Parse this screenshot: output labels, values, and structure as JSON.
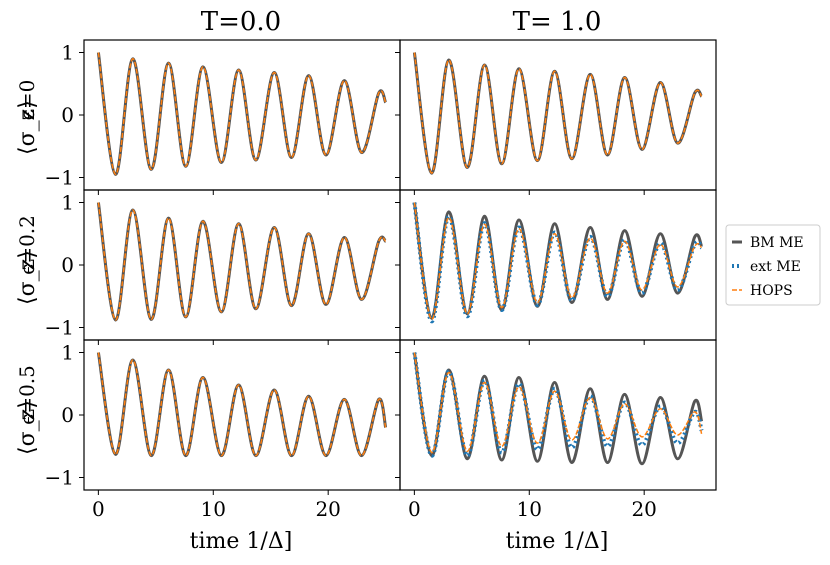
{
  "figure": {
    "col_titles": [
      "T=0.0",
      "T= 1.0"
    ],
    "row_params": [
      "ϵ=0",
      "ϵ=0.2",
      "ϵ=0.5"
    ],
    "ylabel": "⟨σ_z⟩",
    "xlabel": "time 1/Δ]",
    "legend_entries": [
      "BM ME",
      "ext ME",
      "HOPS"
    ],
    "colors": {
      "bm_me": "#555555",
      "ext_me": "#1f77b4",
      "hops": "#ff7f0e",
      "frame": "#000000"
    }
  },
  "chart_data": {
    "type": "line",
    "layout": "3x2 grid, shared axes",
    "legend_placement": "right",
    "grid": false,
    "xlim": [
      -1.25,
      26.25
    ],
    "ylim": [
      -1.2,
      1.2
    ],
    "xticks": [
      0,
      10,
      20
    ],
    "yticks": [
      1,
      0,
      -1
    ],
    "series_styles": {
      "BM ME": "solid",
      "ext ME": "dotted",
      "HOPS": "dashed"
    },
    "panels": [
      {
        "row": 0,
        "col": 0,
        "series": [
          {
            "name": "BM ME",
            "x": [
              0,
              1.5,
              3.0,
              4.6,
              6.1,
              7.6,
              9.1,
              10.7,
              12.2,
              13.7,
              15.3,
              16.8,
              18.3,
              19.8,
              21.4,
              22.9,
              24.4,
              25.0
            ],
            "y": [
              1.0,
              -0.95,
              0.9,
              -0.87,
              0.83,
              -0.82,
              0.77,
              -0.76,
              0.72,
              -0.72,
              0.68,
              -0.68,
              0.63,
              -0.64,
              0.55,
              -0.6,
              0.35,
              0.2
            ]
          },
          {
            "name": "HOPS",
            "x": [
              0,
              1.5,
              3.0,
              4.6,
              6.1,
              7.6,
              9.1,
              10.7,
              12.2,
              13.7,
              15.3,
              16.8,
              18.3,
              19.8,
              21.4,
              22.9,
              24.4,
              25.0
            ],
            "y": [
              1.0,
              -0.95,
              0.9,
              -0.87,
              0.83,
              -0.82,
              0.77,
              -0.76,
              0.72,
              -0.72,
              0.68,
              -0.68,
              0.63,
              -0.64,
              0.55,
              -0.6,
              0.35,
              0.2
            ]
          }
        ]
      },
      {
        "row": 0,
        "col": 1,
        "series": [
          {
            "name": "BM ME",
            "x": [
              0,
              1.5,
              3.0,
              4.6,
              6.1,
              7.6,
              9.1,
              10.7,
              12.2,
              13.7,
              15.3,
              16.8,
              18.3,
              19.8,
              21.4,
              22.9,
              24.4,
              25.0
            ],
            "y": [
              1.0,
              -0.93,
              0.88,
              -0.84,
              0.8,
              -0.78,
              0.74,
              -0.73,
              0.7,
              -0.7,
              0.65,
              -0.64,
              0.6,
              -0.55,
              0.52,
              -0.45,
              0.35,
              0.3
            ]
          },
          {
            "name": "HOPS",
            "x": [
              0,
              1.5,
              3.0,
              4.6,
              6.1,
              7.6,
              9.1,
              10.7,
              12.2,
              13.7,
              15.3,
              16.8,
              18.3,
              19.8,
              21.4,
              22.9,
              24.4,
              25.0
            ],
            "y": [
              1.0,
              -0.93,
              0.88,
              -0.84,
              0.8,
              -0.78,
              0.74,
              -0.73,
              0.7,
              -0.7,
              0.65,
              -0.64,
              0.6,
              -0.55,
              0.52,
              -0.45,
              0.35,
              0.3
            ]
          }
        ]
      },
      {
        "row": 1,
        "col": 0,
        "series": [
          {
            "name": "BM ME",
            "x": [
              0,
              1.5,
              3.0,
              4.6,
              6.1,
              7.6,
              9.1,
              10.7,
              12.2,
              13.7,
              15.3,
              16.8,
              18.3,
              19.8,
              21.4,
              22.9,
              24.4,
              25.0
            ],
            "y": [
              1.0,
              -0.88,
              0.88,
              -0.87,
              0.75,
              -0.83,
              0.7,
              -0.75,
              0.66,
              -0.7,
              0.6,
              -0.65,
              0.5,
              -0.63,
              0.44,
              -0.55,
              0.38,
              0.38
            ]
          },
          {
            "name": "HOPS",
            "x": [
              0,
              1.5,
              3.0,
              4.6,
              6.1,
              7.6,
              9.1,
              10.7,
              12.2,
              13.7,
              15.3,
              16.8,
              18.3,
              19.8,
              21.4,
              22.9,
              24.4,
              25.0
            ],
            "y": [
              1.0,
              -0.88,
              0.88,
              -0.87,
              0.75,
              -0.83,
              0.7,
              -0.75,
              0.66,
              -0.7,
              0.6,
              -0.65,
              0.5,
              -0.63,
              0.44,
              -0.55,
              0.38,
              0.38
            ]
          }
        ]
      },
      {
        "row": 1,
        "col": 1,
        "series": [
          {
            "name": "BM ME",
            "x": [
              0,
              1.5,
              3.0,
              4.6,
              6.1,
              7.6,
              9.1,
              10.7,
              12.2,
              13.7,
              15.3,
              16.8,
              18.3,
              19.8,
              21.4,
              22.9,
              24.4,
              25.0
            ],
            "y": [
              1.0,
              -0.85,
              0.85,
              -0.78,
              0.78,
              -0.72,
              0.72,
              -0.66,
              0.66,
              -0.6,
              0.6,
              -0.55,
              0.55,
              -0.5,
              0.5,
              -0.45,
              0.45,
              0.3
            ]
          },
          {
            "name": "ext ME",
            "x": [
              0,
              1.5,
              3.0,
              4.6,
              6.1,
              7.6,
              9.1,
              10.7,
              12.2,
              13.7,
              15.3,
              16.8,
              18.3,
              19.8,
              21.4,
              22.9,
              24.4,
              25.0
            ],
            "y": [
              1.0,
              -0.9,
              0.78,
              -0.82,
              0.67,
              -0.72,
              0.6,
              -0.64,
              0.52,
              -0.57,
              0.45,
              -0.5,
              0.4,
              -0.45,
              0.35,
              -0.4,
              0.33,
              0.28
            ]
          },
          {
            "name": "HOPS",
            "x": [
              0,
              1.5,
              3.0,
              4.6,
              6.1,
              7.6,
              9.1,
              10.7,
              12.2,
              13.7,
              15.3,
              16.8,
              18.3,
              19.8,
              21.4,
              22.9,
              24.4,
              25.0
            ],
            "y": [
              1.0,
              -0.87,
              0.76,
              -0.78,
              0.65,
              -0.68,
              0.58,
              -0.6,
              0.5,
              -0.52,
              0.43,
              -0.45,
              0.38,
              -0.4,
              0.33,
              -0.35,
              0.3,
              0.28
            ]
          }
        ]
      },
      {
        "row": 2,
        "col": 0,
        "series": [
          {
            "name": "BM ME",
            "x": [
              0,
              1.5,
              3.0,
              4.6,
              6.1,
              7.6,
              9.1,
              10.7,
              12.2,
              13.7,
              15.3,
              16.8,
              18.3,
              19.8,
              21.4,
              22.9,
              24.4,
              25.0
            ],
            "y": [
              1.0,
              -0.63,
              0.88,
              -0.65,
              0.72,
              -0.65,
              0.6,
              -0.65,
              0.48,
              -0.65,
              0.4,
              -0.65,
              0.3,
              -0.65,
              0.25,
              -0.65,
              0.25,
              -0.2
            ]
          },
          {
            "name": "HOPS",
            "x": [
              0,
              1.5,
              3.0,
              4.6,
              6.1,
              7.6,
              9.1,
              10.7,
              12.2,
              13.7,
              15.3,
              16.8,
              18.3,
              19.8,
              21.4,
              22.9,
              24.4,
              25.0
            ],
            "y": [
              1.0,
              -0.63,
              0.88,
              -0.65,
              0.72,
              -0.65,
              0.6,
              -0.65,
              0.48,
              -0.65,
              0.4,
              -0.65,
              0.3,
              -0.65,
              0.25,
              -0.65,
              0.25,
              -0.2
            ]
          }
        ]
      },
      {
        "row": 2,
        "col": 1,
        "series": [
          {
            "name": "BM ME",
            "x": [
              0,
              1.5,
              3.0,
              4.6,
              6.1,
              7.6,
              9.1,
              10.7,
              12.2,
              13.7,
              15.3,
              16.8,
              18.3,
              19.8,
              21.4,
              22.9,
              24.4,
              25.0
            ],
            "y": [
              1.0,
              -0.65,
              0.72,
              -0.7,
              0.62,
              -0.72,
              0.6,
              -0.74,
              0.52,
              -0.76,
              0.42,
              -0.76,
              0.33,
              -0.78,
              0.28,
              -0.7,
              0.22,
              -0.1
            ]
          },
          {
            "name": "ext ME",
            "x": [
              0,
              1.5,
              3.0,
              4.6,
              6.1,
              7.6,
              9.1,
              10.7,
              12.2,
              13.7,
              15.3,
              16.8,
              18.3,
              19.8,
              21.4,
              22.9,
              24.4,
              25.0
            ],
            "y": [
              1.0,
              -0.65,
              0.7,
              -0.65,
              0.55,
              -0.6,
              0.5,
              -0.55,
              0.42,
              -0.52,
              0.3,
              -0.5,
              0.2,
              -0.48,
              0.14,
              -0.45,
              0.05,
              -0.25
            ]
          },
          {
            "name": "HOPS",
            "x": [
              0,
              1.5,
              3.0,
              4.6,
              6.1,
              7.6,
              9.1,
              10.7,
              12.2,
              13.7,
              15.3,
              16.8,
              18.3,
              19.8,
              21.4,
              22.9,
              24.4,
              25.0
            ],
            "y": [
              1.0,
              -0.6,
              0.68,
              -0.58,
              0.52,
              -0.5,
              0.45,
              -0.45,
              0.38,
              -0.4,
              0.28,
              -0.38,
              0.18,
              -0.35,
              0.1,
              -0.32,
              0.05,
              -0.3
            ]
          }
        ]
      }
    ]
  }
}
